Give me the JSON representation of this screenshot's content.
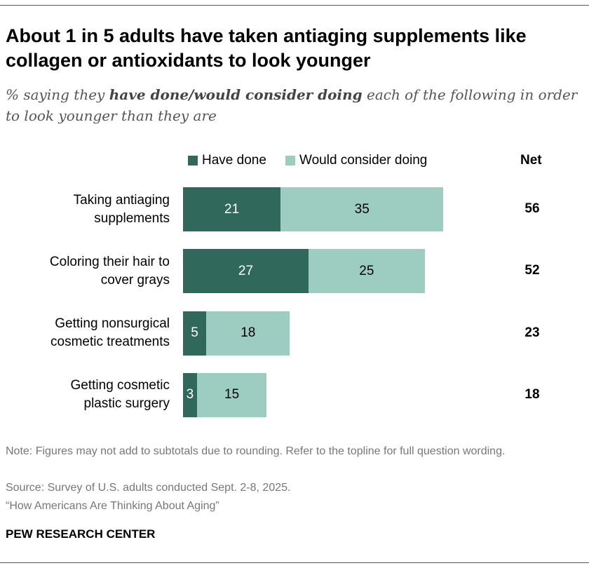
{
  "title": "About 1 in 5 adults have taken antiaging supplements like collagen or antioxidants to look younger",
  "subtitle_pre": "% saying they ",
  "subtitle_bold": "have done/would consider doing",
  "subtitle_post": " each of the following in order to look younger than they are",
  "colors": {
    "have_done": "#30695b",
    "would_consider": "#9dcdc1"
  },
  "chart_data": {
    "type": "bar",
    "orientation": "horizontal",
    "stacked": true,
    "categories": [
      "Taking antiaging supplements",
      "Coloring their hair to cover grays",
      "Getting nonsurgical cosmetic treatments",
      "Getting cosmetic plastic surgery"
    ],
    "category_lines": [
      [
        "Taking antiaging",
        "supplements"
      ],
      [
        "Coloring their hair to",
        "cover grays"
      ],
      [
        "Getting nonsurgical",
        "cosmetic treatments"
      ],
      [
        "Getting cosmetic",
        "plastic surgery"
      ]
    ],
    "series": [
      {
        "name": "Have done",
        "values": [
          21,
          27,
          5,
          3
        ]
      },
      {
        "name": "Would consider doing",
        "values": [
          35,
          25,
          18,
          15
        ]
      }
    ],
    "net_label": "Net",
    "net": [
      56,
      52,
      23,
      18
    ],
    "legend": "top"
  },
  "note": "Note: Figures may not add to subtotals due to rounding. Refer to the topline for full question wording.",
  "source": "Source: Survey of U.S. adults conducted Sept. 2-8, 2025.",
  "report": "“How Americans Are Thinking About Aging”",
  "brand": "PEW RESEARCH CENTER"
}
